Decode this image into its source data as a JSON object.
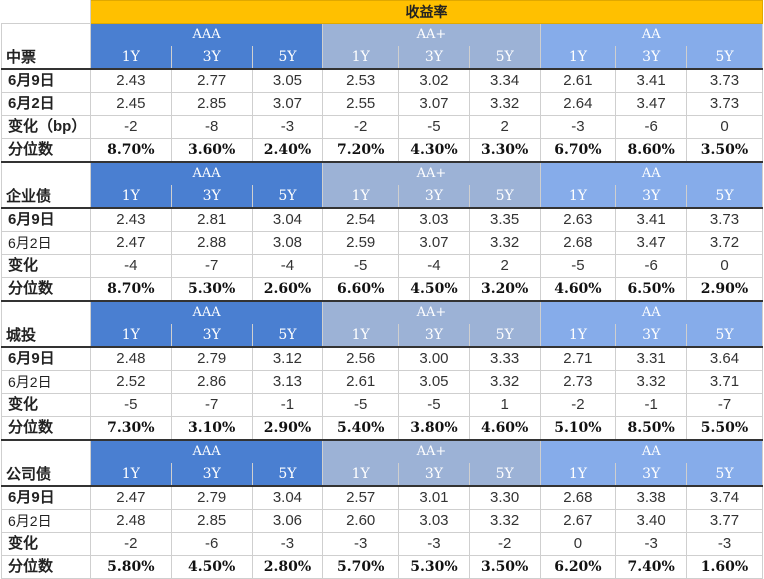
{
  "title": "收益率",
  "grades": [
    "AAA",
    "AA+",
    "AA"
  ],
  "tenors": [
    "1Y",
    "3Y",
    "5Y"
  ],
  "colors": {
    "title_bg": "#ffc000",
    "aaa_bg": "#4a7fd1",
    "aa_plus_bg": "#9cb2d6",
    "aa_bg": "#86acea"
  },
  "sections": [
    {
      "name": "中票",
      "rows": [
        {
          "label": "6月9日",
          "bold_label": true,
          "bold_values": false,
          "values": [
            "2.43",
            "2.77",
            "3.05",
            "2.53",
            "3.02",
            "3.34",
            "2.61",
            "3.41",
            "3.73"
          ]
        },
        {
          "label": "6月2日",
          "bold_label": true,
          "bold_values": false,
          "values": [
            "2.45",
            "2.85",
            "3.07",
            "2.55",
            "3.07",
            "3.32",
            "2.64",
            "3.47",
            "3.73"
          ]
        },
        {
          "label": "变化（bp）",
          "bold_label": true,
          "bold_values": false,
          "values": [
            "-2",
            "-8",
            "-3",
            "-2",
            "-5",
            "2",
            "-3",
            "-6",
            "0"
          ]
        },
        {
          "label": "分位数",
          "bold_label": true,
          "bold_values": true,
          "values": [
            "8.70%",
            "3.60%",
            "2.40%",
            "7.20%",
            "4.30%",
            "3.30%",
            "6.70%",
            "8.60%",
            "3.50%"
          ]
        }
      ]
    },
    {
      "name": "企业债",
      "rows": [
        {
          "label": "6月9日",
          "bold_label": true,
          "bold_values": false,
          "values": [
            "2.43",
            "2.81",
            "3.04",
            "2.54",
            "3.03",
            "3.35",
            "2.63",
            "3.41",
            "3.73"
          ]
        },
        {
          "label": "6月2日",
          "bold_label": false,
          "bold_values": false,
          "values": [
            "2.47",
            "2.88",
            "3.08",
            "2.59",
            "3.07",
            "3.32",
            "2.68",
            "3.47",
            "3.72"
          ]
        },
        {
          "label": "变化",
          "bold_label": true,
          "bold_values": false,
          "values": [
            "-4",
            "-7",
            "-4",
            "-5",
            "-4",
            "2",
            "-5",
            "-6",
            "0"
          ]
        },
        {
          "label": "分位数",
          "bold_label": true,
          "bold_values": true,
          "values": [
            "8.70%",
            "5.30%",
            "2.60%",
            "6.60%",
            "4.50%",
            "3.20%",
            "4.60%",
            "6.50%",
            "2.90%"
          ]
        }
      ]
    },
    {
      "name": "城投",
      "rows": [
        {
          "label": "6月9日",
          "bold_label": true,
          "bold_values": false,
          "values": [
            "2.48",
            "2.79",
            "3.12",
            "2.56",
            "3.00",
            "3.33",
            "2.71",
            "3.31",
            "3.64"
          ]
        },
        {
          "label": "6月2日",
          "bold_label": false,
          "bold_values": false,
          "values": [
            "2.52",
            "2.86",
            "3.13",
            "2.61",
            "3.05",
            "3.32",
            "2.73",
            "3.32",
            "3.71"
          ]
        },
        {
          "label": "变化",
          "bold_label": true,
          "bold_values": false,
          "values": [
            "-5",
            "-7",
            "-1",
            "-5",
            "-5",
            "1",
            "-2",
            "-1",
            "-7"
          ]
        },
        {
          "label": "分位数",
          "bold_label": true,
          "bold_values": true,
          "values": [
            "7.30%",
            "3.10%",
            "2.90%",
            "5.40%",
            "3.80%",
            "4.60%",
            "5.10%",
            "8.50%",
            "5.50%"
          ]
        }
      ]
    },
    {
      "name": "公司债",
      "rows": [
        {
          "label": "6月9日",
          "bold_label": true,
          "bold_values": false,
          "values": [
            "2.47",
            "2.79",
            "3.04",
            "2.57",
            "3.01",
            "3.30",
            "2.68",
            "3.38",
            "3.74"
          ]
        },
        {
          "label": "6月2日",
          "bold_label": false,
          "bold_values": false,
          "values": [
            "2.48",
            "2.85",
            "3.06",
            "2.60",
            "3.03",
            "3.32",
            "2.67",
            "3.40",
            "3.77"
          ]
        },
        {
          "label": "变化",
          "bold_label": true,
          "bold_values": false,
          "values": [
            "-2",
            "-6",
            "-3",
            "-3",
            "-3",
            "-2",
            "0",
            "-3",
            "-3"
          ]
        },
        {
          "label": "分位数",
          "bold_label": true,
          "bold_values": true,
          "values": [
            "5.80%",
            "4.50%",
            "2.80%",
            "5.70%",
            "5.30%",
            "3.50%",
            "6.20%",
            "7.40%",
            "1.60%"
          ]
        }
      ]
    }
  ]
}
